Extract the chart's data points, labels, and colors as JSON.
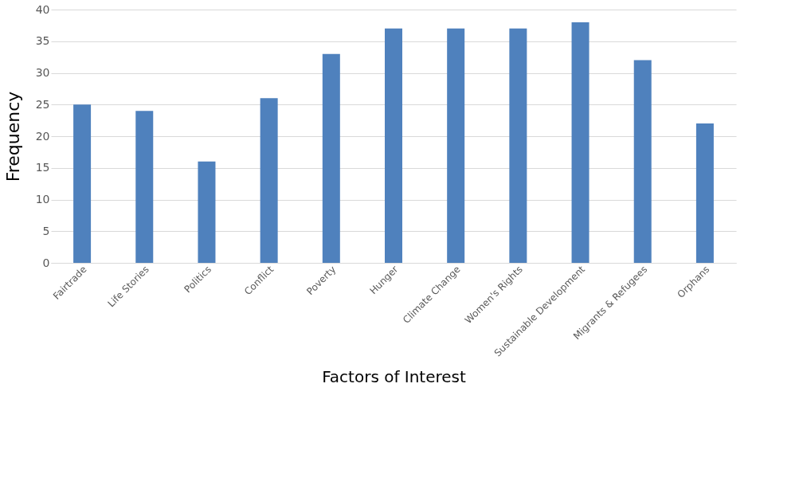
{
  "chart_data": {
    "type": "bar",
    "xlabel": "Factors of Interest",
    "ylabel": "Frequency",
    "categories": [
      "Fairtrade",
      "Life Stories",
      "Politics",
      "Conflict",
      "Poverty",
      "Hunger",
      "Climate Change",
      "Women's Rights",
      "Sustainable Development",
      "Migrants & Refugees",
      "Orphans"
    ],
    "values": [
      25,
      24,
      16,
      26,
      33,
      37,
      37,
      37,
      38,
      32,
      22
    ],
    "color": "#4f81bd",
    "ylim": [
      0,
      40
    ],
    "yticks": [
      0,
      5,
      10,
      15,
      20,
      25,
      30,
      35,
      40
    ],
    "grid": "y"
  }
}
